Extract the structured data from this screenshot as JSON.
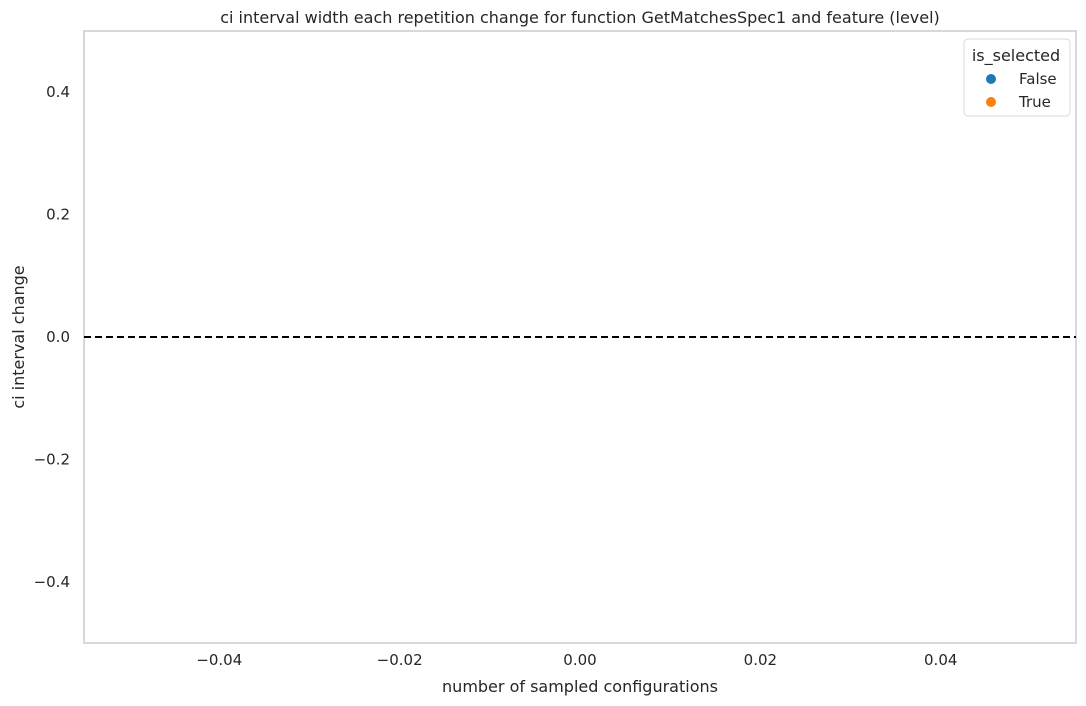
{
  "chart_data": {
    "type": "scatter",
    "title": "ci interval width each repetition change for function GetMatchesSpec1 and feature (level)",
    "xlabel": "number of sampled configurations",
    "ylabel": "ci interval change",
    "xlim": [
      -0.055,
      0.055
    ],
    "ylim": [
      -0.5,
      0.5
    ],
    "xticks": [
      -0.04,
      -0.02,
      0.0,
      0.02,
      0.04
    ],
    "xtick_labels": [
      "−0.04",
      "−0.02",
      "0.00",
      "0.02",
      "0.04"
    ],
    "yticks": [
      0.4,
      0.2,
      0.0,
      -0.2,
      -0.4
    ],
    "ytick_labels": [
      "0.4",
      "0.2",
      "0.0",
      "−0.2",
      "−0.4"
    ],
    "grid": false,
    "reference_line": {
      "y": 0.0,
      "style": "dashed",
      "color": "#000000"
    },
    "legend": {
      "title": "is_selected",
      "position": "top-right",
      "entries": [
        {
          "label": "False",
          "color": "#1f77b4"
        },
        {
          "label": "True",
          "color": "#ff7f0e"
        }
      ]
    },
    "series": [
      {
        "name": "False",
        "color": "#1f77b4",
        "points": []
      },
      {
        "name": "True",
        "color": "#ff7f0e",
        "points": []
      }
    ]
  }
}
